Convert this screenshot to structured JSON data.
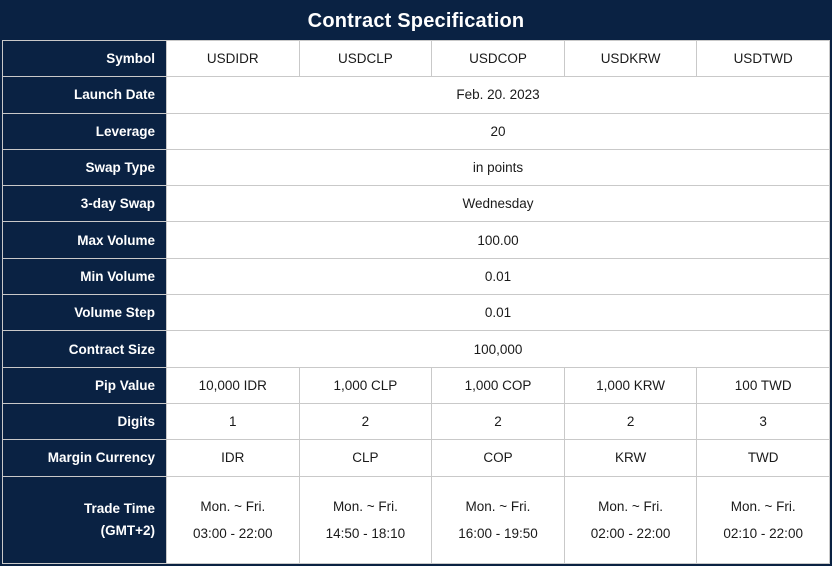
{
  "title": "Contract Specification",
  "colors": {
    "header_navy": "#0a2243",
    "border_gray": "#c9c9c9",
    "label_text": "#ffffff",
    "cell_text": "#1a1a1a"
  },
  "columns": [
    "USDIDR",
    "USDCLP",
    "USDCOP",
    "USDKRW",
    "USDTWD"
  ],
  "rows": {
    "symbol": {
      "label": "Symbol"
    },
    "launch_date": {
      "label": "Launch Date",
      "value": "Feb. 20. 2023"
    },
    "leverage": {
      "label": "Leverage",
      "value": "20"
    },
    "swap_type": {
      "label": "Swap Type",
      "value": "in points"
    },
    "three_day_swap": {
      "label": "3-day Swap",
      "value": "Wednesday"
    },
    "max_volume": {
      "label": "Max Volume",
      "value": "100.00"
    },
    "min_volume": {
      "label": "Min Volume",
      "value": "0.01"
    },
    "volume_step": {
      "label": "Volume Step",
      "value": "0.01"
    },
    "contract_size": {
      "label": "Contract Size",
      "value": "100,000"
    },
    "pip_value": {
      "label": "Pip Value",
      "values": [
        "10,000 IDR",
        "1,000 CLP",
        "1,000 COP",
        "1,000 KRW",
        "100 TWD"
      ]
    },
    "digits": {
      "label": "Digits",
      "values": [
        "1",
        "2",
        "2",
        "2",
        "3"
      ]
    },
    "margin_currency": {
      "label": "Margin Currency",
      "values": [
        "IDR",
        "CLP",
        "COP",
        "KRW",
        "TWD"
      ]
    },
    "trade_time": {
      "label_line1": "Trade Time",
      "label_line2": "(GMT+2)",
      "days": "Mon. ~ Fri.",
      "hours": [
        "03:00 - 22:00",
        "14:50 - 18:10",
        "16:00 - 19:50",
        "02:00 - 22:00",
        "02:10 - 22:00"
      ]
    }
  }
}
